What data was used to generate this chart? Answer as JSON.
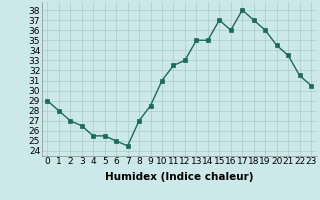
{
  "x": [
    0,
    1,
    2,
    3,
    4,
    5,
    6,
    7,
    8,
    9,
    10,
    11,
    12,
    13,
    14,
    15,
    16,
    17,
    18,
    19,
    20,
    21,
    22,
    23
  ],
  "y": [
    29,
    28,
    27,
    26.5,
    25.5,
    25.5,
    25,
    24.5,
    27,
    28.5,
    31,
    32.5,
    33,
    35,
    35,
    37,
    36,
    38,
    37,
    36,
    34.5,
    33.5,
    31.5,
    30.5
  ],
  "xlabel": "Humidex (Indice chaleur)",
  "ylabel_ticks": [
    24,
    25,
    26,
    27,
    28,
    29,
    30,
    31,
    32,
    33,
    34,
    35,
    36,
    37,
    38
  ],
  "ylim": [
    23.5,
    38.8
  ],
  "xlim": [
    -0.5,
    23.5
  ],
  "bg_color": "#cce8e8",
  "grid_color": "#aacccc",
  "line_color": "#1a6b5a",
  "marker": "s",
  "marker_size": 2.5,
  "line_width": 1.0,
  "xlabel_fontsize": 7.5,
  "tick_fontsize": 6.5
}
